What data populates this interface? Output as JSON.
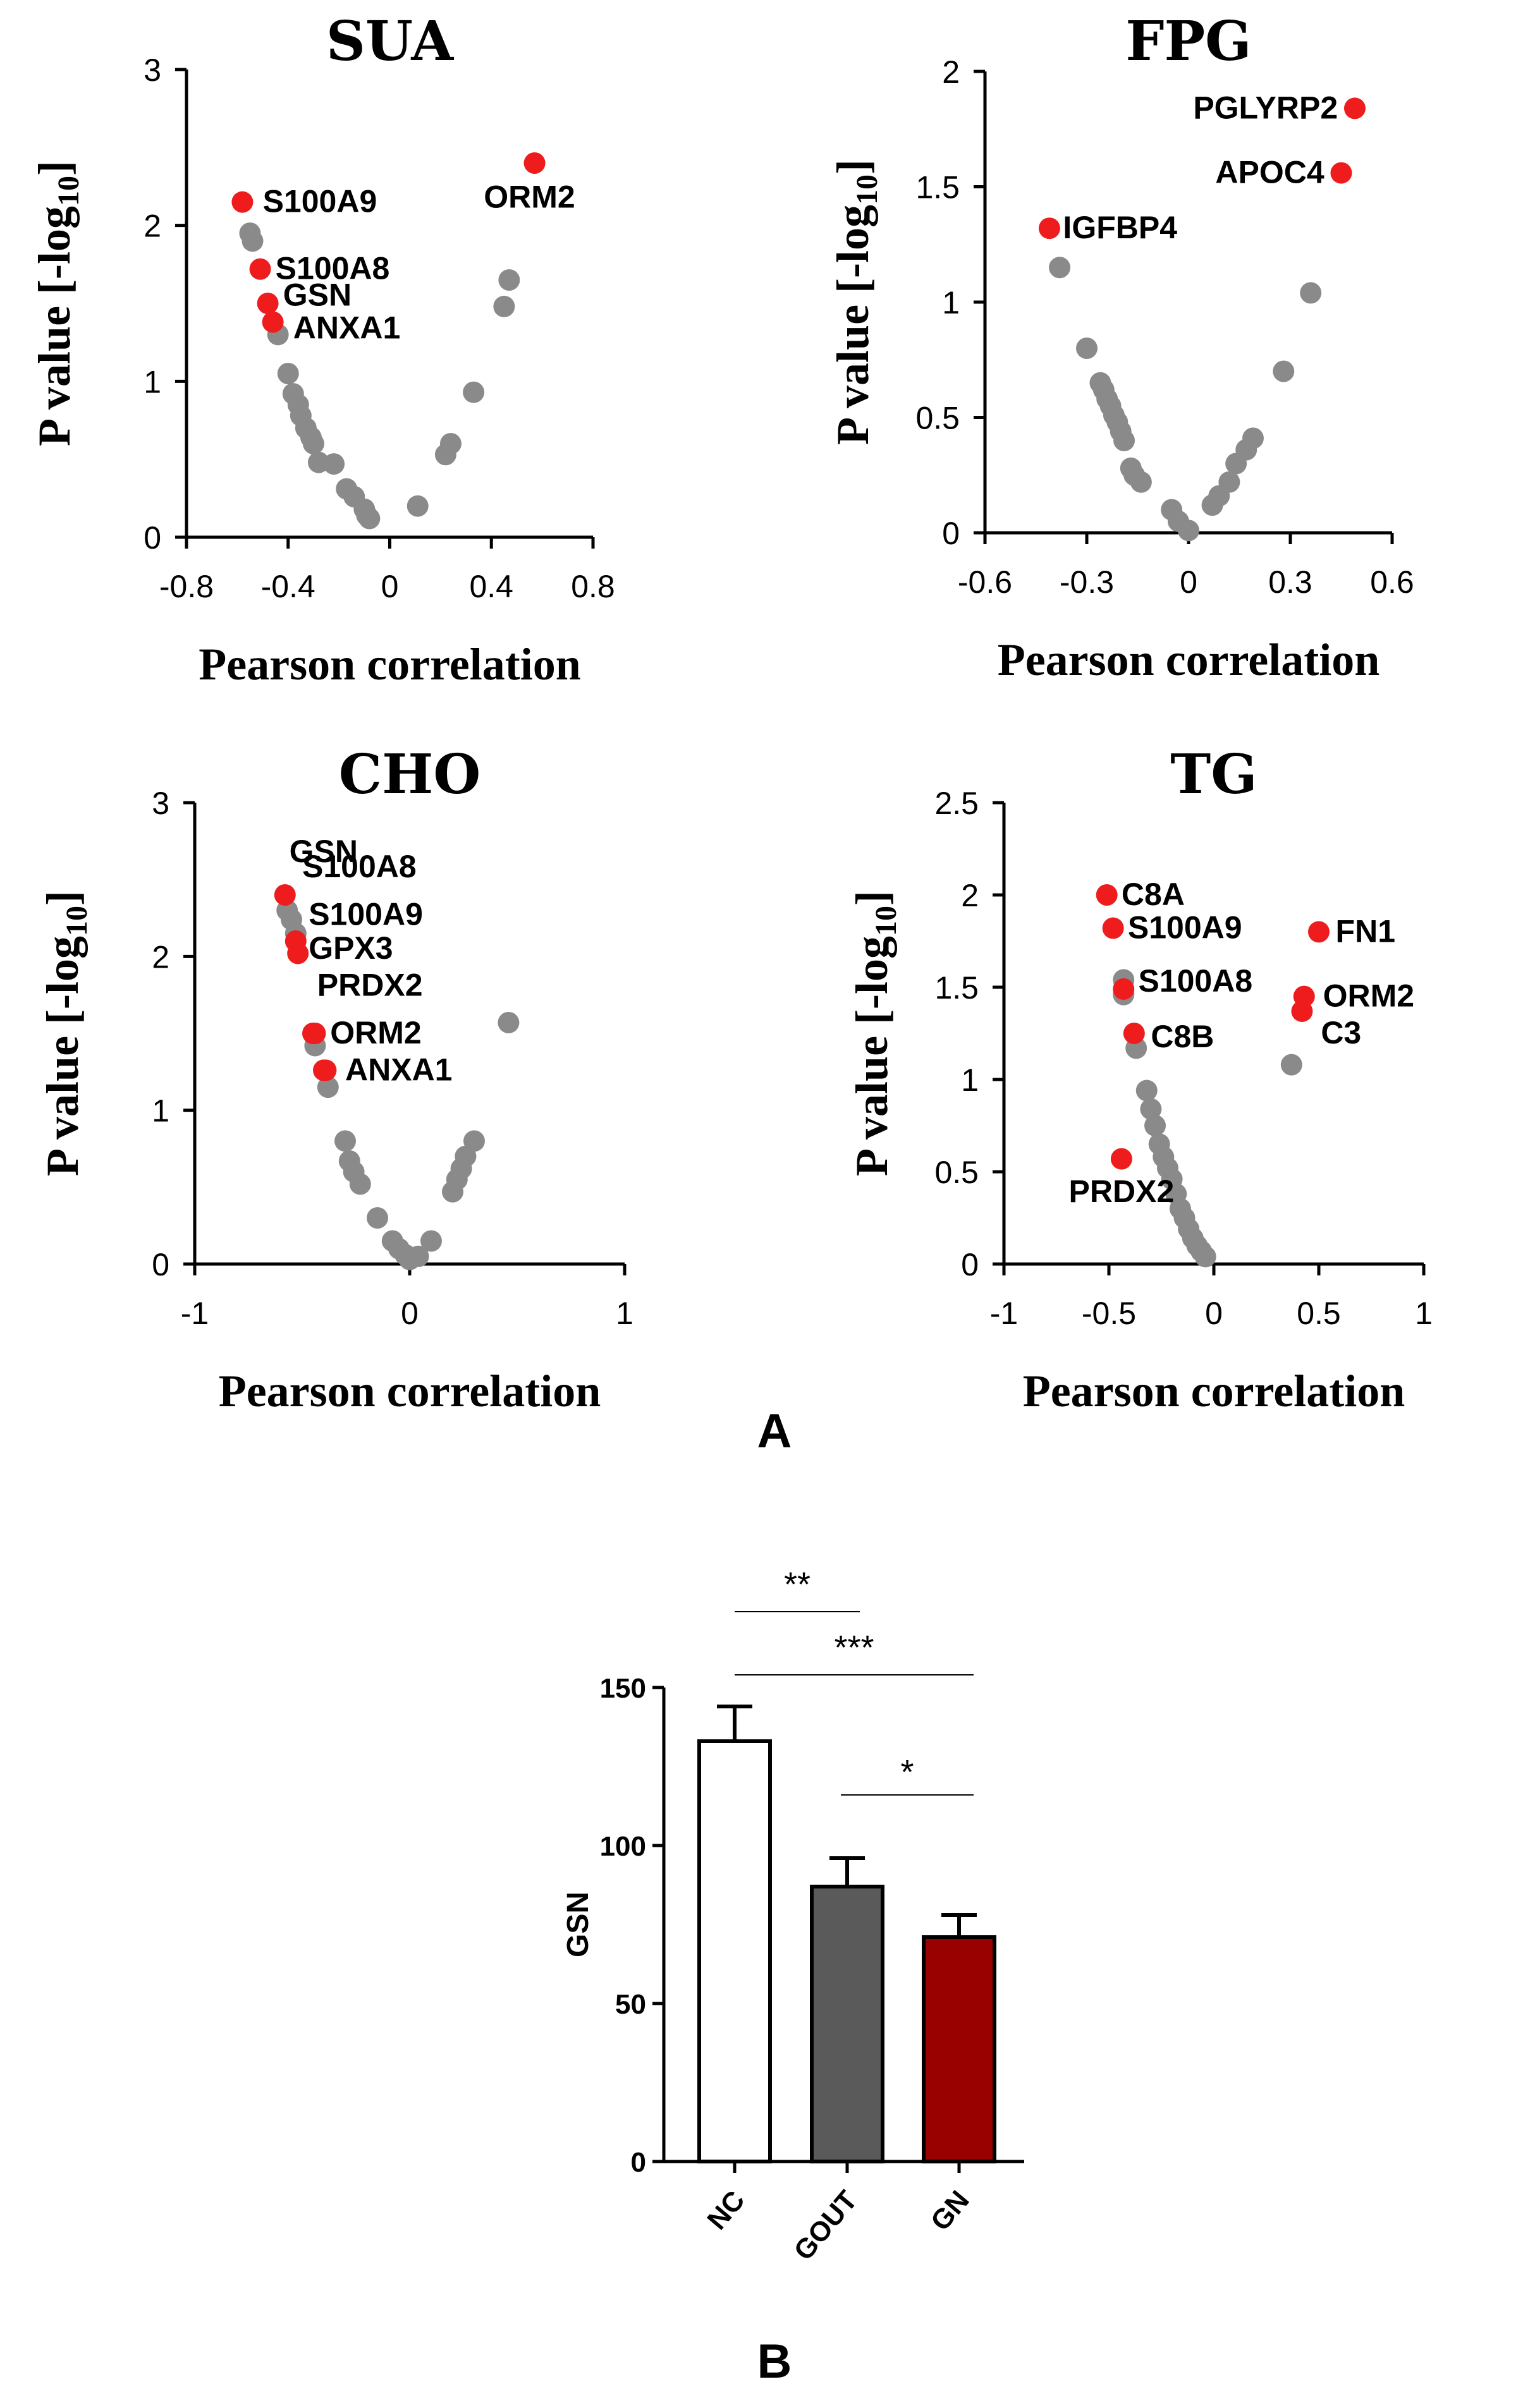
{
  "figure": {
    "panel_a_label": "A",
    "panel_b_label": "B"
  },
  "chart_data": [
    {
      "id": "sua",
      "type": "scatter",
      "title": "SUA",
      "xlabel": "Pearson correlation",
      "ylabel_main": "P value [-log",
      "ylabel_sub": "10",
      "ylabel_end": "]",
      "xlim": [
        -0.8,
        0.8
      ],
      "ylim": [
        0,
        3
      ],
      "xticks": [
        -0.8,
        -0.4,
        0,
        0.4,
        0.8
      ],
      "xtick_labels": [
        "-0.8",
        "-0.4",
        "0",
        "0.4",
        "0.8"
      ],
      "yticks": [
        0,
        1,
        2,
        3
      ],
      "ytick_labels": [
        "0",
        "1",
        "2",
        "3"
      ],
      "colors": {
        "highlight": "#ee1c1c",
        "other": "#8a8a8a"
      },
      "highlighted": [
        {
          "label": "S100A9",
          "x": -0.58,
          "y": 2.15,
          "lx": 0.08,
          "ly": 0.0
        },
        {
          "label": "S100A8",
          "x": -0.51,
          "y": 1.72,
          "lx": 0.06,
          "ly": 0.0
        },
        {
          "label": "GSN",
          "x": -0.48,
          "y": 1.5,
          "lx": 0.06,
          "ly": 0.05
        },
        {
          "label": "ANXA1",
          "x": -0.46,
          "y": 1.38,
          "lx": 0.08,
          "ly": -0.04
        },
        {
          "label": "ORM2",
          "x": 0.57,
          "y": 2.4,
          "lx": -0.2,
          "ly": -0.22
        }
      ],
      "points": [
        [
          -0.55,
          1.95
        ],
        [
          -0.54,
          1.9
        ],
        [
          -0.44,
          1.3
        ],
        [
          -0.4,
          1.05
        ],
        [
          -0.38,
          0.92
        ],
        [
          -0.36,
          0.85
        ],
        [
          -0.35,
          0.78
        ],
        [
          -0.33,
          0.7
        ],
        [
          -0.31,
          0.64
        ],
        [
          -0.3,
          0.6
        ],
        [
          -0.28,
          0.48
        ],
        [
          -0.22,
          0.47
        ],
        [
          -0.17,
          0.31
        ],
        [
          -0.14,
          0.26
        ],
        [
          -0.1,
          0.18
        ],
        [
          -0.09,
          0.14
        ],
        [
          -0.08,
          0.12
        ],
        [
          0.11,
          0.2
        ],
        [
          0.22,
          0.53
        ],
        [
          0.24,
          0.6
        ],
        [
          0.33,
          0.93
        ],
        [
          0.45,
          1.48
        ],
        [
          0.47,
          1.65
        ]
      ]
    },
    {
      "id": "fpg",
      "type": "scatter",
      "title": "FPG",
      "xlabel": "Pearson correlation",
      "ylabel_main": "P value [-log",
      "ylabel_sub": "10",
      "ylabel_end": "]",
      "xlim": [
        -0.6,
        0.6
      ],
      "ylim": [
        0,
        2
      ],
      "xticks": [
        -0.6,
        -0.3,
        0,
        0.3,
        0.6
      ],
      "xtick_labels": [
        "-0.6",
        "-0.3",
        "0",
        "0.3",
        "0.6"
      ],
      "yticks": [
        0,
        0.5,
        1,
        1.5,
        2
      ],
      "ytick_labels": [
        "0",
        "0.5",
        "1",
        "1.5",
        "2"
      ],
      "colors": {
        "highlight": "#ee1c1c",
        "other": "#8a8a8a"
      },
      "highlighted": [
        {
          "label": "IGFBP4",
          "x": -0.41,
          "y": 1.32,
          "lx": 0.04,
          "ly": 0.0
        },
        {
          "label": "PGLYRP2",
          "x": 0.49,
          "y": 1.84,
          "lx": -0.05,
          "ly": 0.0,
          "anchor": "end"
        },
        {
          "label": "APOC4",
          "x": 0.45,
          "y": 1.56,
          "lx": -0.05,
          "ly": 0.0,
          "anchor": "end"
        }
      ],
      "points": [
        [
          -0.38,
          1.15
        ],
        [
          -0.3,
          0.8
        ],
        [
          -0.26,
          0.65
        ],
        [
          -0.25,
          0.62
        ],
        [
          -0.24,
          0.58
        ],
        [
          -0.23,
          0.55
        ],
        [
          -0.22,
          0.51
        ],
        [
          -0.21,
          0.48
        ],
        [
          -0.2,
          0.44
        ],
        [
          -0.19,
          0.4
        ],
        [
          -0.17,
          0.28
        ],
        [
          -0.16,
          0.25
        ],
        [
          -0.14,
          0.22
        ],
        [
          -0.05,
          0.1
        ],
        [
          -0.03,
          0.05
        ],
        [
          0.0,
          0.01
        ],
        [
          0.07,
          0.12
        ],
        [
          0.09,
          0.16
        ],
        [
          0.12,
          0.22
        ],
        [
          0.14,
          0.3
        ],
        [
          0.17,
          0.36
        ],
        [
          0.19,
          0.41
        ],
        [
          0.28,
          0.7
        ],
        [
          0.36,
          1.04
        ]
      ]
    },
    {
      "id": "cho",
      "type": "scatter",
      "title": "CHO",
      "xlabel": "Pearson correlation",
      "ylabel_main": "P value [-log",
      "ylabel_sub": "10",
      "ylabel_end": "]",
      "xlim": [
        -1,
        1
      ],
      "ylim": [
        0,
        3
      ],
      "xticks": [
        -1,
        0,
        1
      ],
      "xtick_labels": [
        "-1",
        "0",
        "1"
      ],
      "yticks": [
        0,
        1,
        2,
        3
      ],
      "ytick_labels": [
        "0",
        "1",
        "2",
        "3"
      ],
      "colors": {
        "highlight": "#ee1c1c",
        "other": "#8a8a8a"
      },
      "highlighted": [
        {
          "label": "GSN",
          "x": -0.58,
          "y": 2.4,
          "lx": 0.02,
          "ly": 0.28
        },
        {
          "label": "S100A8",
          "x": -0.53,
          "y": 2.1,
          "lx": 0.03,
          "ly": 0.48
        },
        {
          "label": "S100A9",
          "x": -0.52,
          "y": 2.02,
          "lx": 0.05,
          "ly": 0.25
        },
        {
          "label": "GPX3",
          "x": -0.45,
          "y": 1.5,
          "lx": -0.02,
          "ly": 0.55
        },
        {
          "label": "PRDX2",
          "x": -0.4,
          "y": 1.26,
          "lx": -0.03,
          "ly": 0.55
        },
        {
          "label": "ORM2",
          "x": -0.44,
          "y": 1.5,
          "lx": 0.07,
          "ly": 0.0
        },
        {
          "label": "ANXA1",
          "x": -0.39,
          "y": 1.26,
          "lx": 0.09,
          "ly": 0.0
        }
      ],
      "points": [
        [
          -0.57,
          2.3
        ],
        [
          -0.55,
          2.24
        ],
        [
          -0.53,
          2.15
        ],
        [
          -0.44,
          1.42
        ],
        [
          -0.38,
          1.15
        ],
        [
          -0.3,
          0.8
        ],
        [
          -0.28,
          0.67
        ],
        [
          -0.26,
          0.6
        ],
        [
          -0.23,
          0.52
        ],
        [
          -0.15,
          0.3
        ],
        [
          -0.08,
          0.15
        ],
        [
          -0.05,
          0.1
        ],
        [
          -0.02,
          0.06
        ],
        [
          0.0,
          0.03
        ],
        [
          0.04,
          0.05
        ],
        [
          0.1,
          0.15
        ],
        [
          0.2,
          0.47
        ],
        [
          0.22,
          0.55
        ],
        [
          0.24,
          0.62
        ],
        [
          0.26,
          0.7
        ],
        [
          0.3,
          0.8
        ],
        [
          0.46,
          1.57
        ]
      ]
    },
    {
      "id": "tg",
      "type": "scatter",
      "title": "TG",
      "xlabel": "Pearson correlation",
      "ylabel_main": "P value [-log",
      "ylabel_sub": "10",
      "ylabel_end": "]",
      "xlim": [
        -1,
        1
      ],
      "ylim": [
        0,
        2.5
      ],
      "xticks": [
        -1,
        -0.5,
        0,
        0.5,
        1
      ],
      "xtick_labels": [
        "-1",
        "-0.5",
        "0",
        "0.5",
        "1"
      ],
      "yticks": [
        0,
        0.5,
        1,
        1.5,
        2,
        2.5
      ],
      "ytick_labels": [
        "0",
        "0.5",
        "1",
        "1.5",
        "2",
        "2.5"
      ],
      "colors": {
        "highlight": "#ee1c1c",
        "other": "#8a8a8a"
      },
      "highlighted": [
        {
          "label": "C8A",
          "x": -0.51,
          "y": 2.0,
          "lx": 0.07,
          "ly": 0.0
        },
        {
          "label": "S100A9",
          "x": -0.48,
          "y": 1.82,
          "lx": 0.07,
          "ly": 0.0
        },
        {
          "label": "S100A8",
          "x": -0.43,
          "y": 1.49,
          "lx": 0.07,
          "ly": 0.04
        },
        {
          "label": "C8B",
          "x": -0.38,
          "y": 1.25,
          "lx": 0.08,
          "ly": -0.02
        },
        {
          "label": "PRDX2",
          "x": -0.44,
          "y": 0.57,
          "lx": 0.0,
          "ly": -0.18,
          "anchor": "middle"
        },
        {
          "label": "FN1",
          "x": 0.5,
          "y": 1.8,
          "lx": 0.08,
          "ly": 0.0
        },
        {
          "label": "ORM2",
          "x": 0.43,
          "y": 1.45,
          "lx": 0.09,
          "ly": 0.0
        },
        {
          "label": "C3",
          "x": 0.42,
          "y": 1.37,
          "lx": 0.09,
          "ly": -0.12
        }
      ],
      "points": [
        [
          -0.43,
          1.54
        ],
        [
          -0.43,
          1.46
        ],
        [
          -0.37,
          1.17
        ],
        [
          -0.32,
          0.94
        ],
        [
          -0.3,
          0.84
        ],
        [
          -0.28,
          0.75
        ],
        [
          -0.26,
          0.65
        ],
        [
          -0.24,
          0.58
        ],
        [
          -0.22,
          0.52
        ],
        [
          -0.2,
          0.46
        ],
        [
          -0.18,
          0.38
        ],
        [
          -0.16,
          0.3
        ],
        [
          -0.14,
          0.25
        ],
        [
          -0.12,
          0.19
        ],
        [
          -0.1,
          0.14
        ],
        [
          -0.08,
          0.1
        ],
        [
          -0.06,
          0.07
        ],
        [
          -0.04,
          0.04
        ],
        [
          0.37,
          1.08
        ]
      ]
    },
    {
      "id": "gsn",
      "type": "bar",
      "title": "",
      "ylabel": "GSN",
      "categories": [
        "NC",
        "GOUT",
        "GN"
      ],
      "values": [
        133,
        87,
        71
      ],
      "errors": [
        11,
        9,
        7
      ],
      "ylim": [
        0,
        150
      ],
      "yticks": [
        0,
        50,
        100,
        150
      ],
      "ytick_labels": [
        "0",
        "50",
        "100",
        "150"
      ],
      "colors": {
        "NC": "#ffffff",
        "GOUT": "#5a5a5a",
        "GN": "#990000"
      },
      "significance": [
        {
          "label": "**",
          "from": 0,
          "to": 1
        },
        {
          "label": "***",
          "from": 0,
          "to": 2
        },
        {
          "label": "*",
          "from": 1,
          "to": 2
        }
      ]
    }
  ]
}
